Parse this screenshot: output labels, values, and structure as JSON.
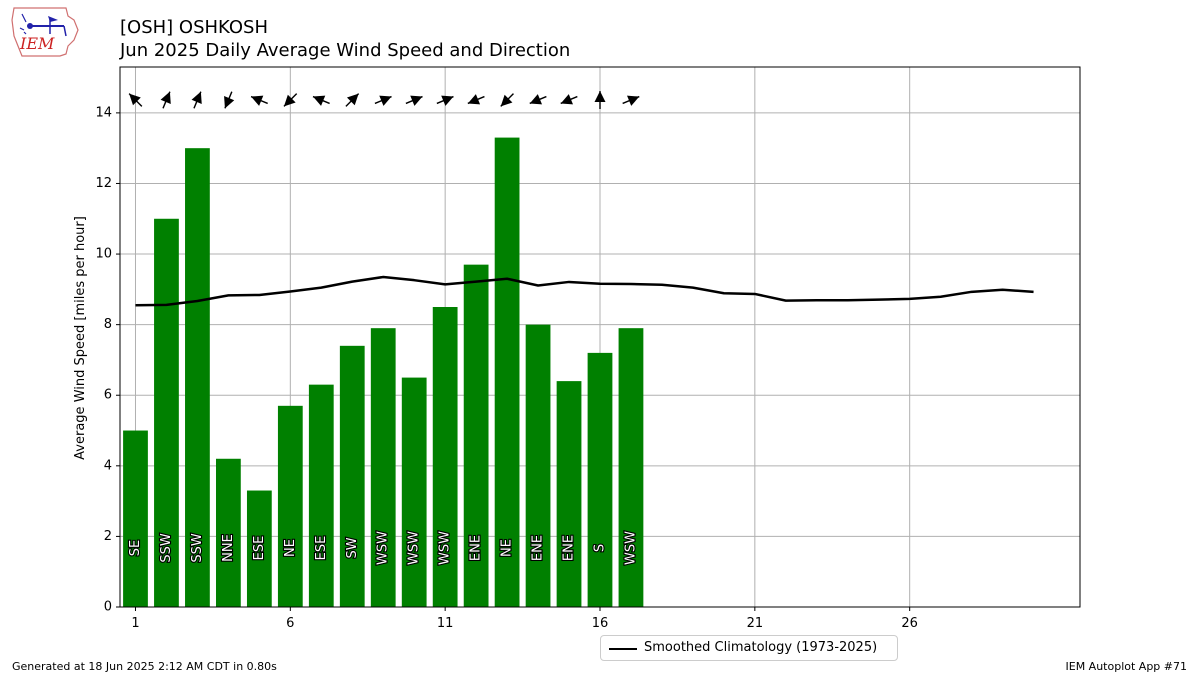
{
  "header": {
    "title": "[OSH] OSHKOSH",
    "subtitle": "Jun 2025 Daily Average Wind Speed and Direction"
  },
  "logo": {
    "text": "IEM"
  },
  "footer": {
    "generated": "Generated at 18 Jun 2025 2:12 AM CDT in 0.80s",
    "app": "IEM Autoplot App #71"
  },
  "colors": {
    "bar": "#008000",
    "climatology": "#000000",
    "grid": "#b0b0b0"
  },
  "chart_data": {
    "type": "bar",
    "ylabel": "Average Wind Speed [miles per hour]",
    "xlim": [
      0.5,
      31.5
    ],
    "ylim": [
      0,
      15.3
    ],
    "xticks": [
      1,
      6,
      11,
      16,
      21,
      26
    ],
    "yticks": [
      0,
      2,
      4,
      6,
      8,
      10,
      12,
      14
    ],
    "grid": true,
    "legend_position": "bottom-center",
    "series": [
      {
        "kind": "bar",
        "days": [
          1,
          2,
          3,
          4,
          5,
          6,
          7,
          8,
          9,
          10,
          11,
          12,
          13,
          14,
          15,
          16,
          17
        ],
        "values": [
          5.0,
          11.0,
          13.0,
          4.2,
          3.3,
          5.7,
          6.3,
          7.4,
          7.9,
          6.5,
          8.5,
          9.7,
          13.3,
          8.0,
          6.4,
          7.2,
          7.9
        ],
        "direction_labels": [
          "SE",
          "SSW",
          "SSW",
          "NNE",
          "ESE",
          "NE",
          "ESE",
          "SW",
          "WSW",
          "WSW",
          "WSW",
          "ENE",
          "NE",
          "ENE",
          "ENE",
          "S",
          "WSW"
        ],
        "direction_degrees": [
          135,
          202.5,
          202.5,
          22.5,
          112.5,
          45,
          112.5,
          225,
          247.5,
          247.5,
          247.5,
          67.5,
          45,
          67.5,
          67.5,
          180,
          247.5
        ]
      },
      {
        "kind": "line",
        "name": "Smoothed Climatology (1973-2025)",
        "days": [
          1,
          2,
          3,
          4,
          5,
          6,
          7,
          8,
          9,
          10,
          11,
          12,
          13,
          14,
          15,
          16,
          17,
          18,
          19,
          20,
          21,
          22,
          23,
          24,
          25,
          26,
          27,
          28,
          29,
          30
        ],
        "values": [
          8.55,
          8.56,
          8.67,
          8.83,
          8.84,
          8.94,
          9.05,
          9.22,
          9.35,
          9.26,
          9.14,
          9.22,
          9.3,
          9.11,
          9.21,
          9.16,
          9.15,
          9.13,
          9.05,
          8.89,
          8.87,
          8.68,
          8.69,
          8.69,
          8.71,
          8.73,
          8.79,
          8.93,
          8.99,
          8.93
        ]
      }
    ]
  }
}
